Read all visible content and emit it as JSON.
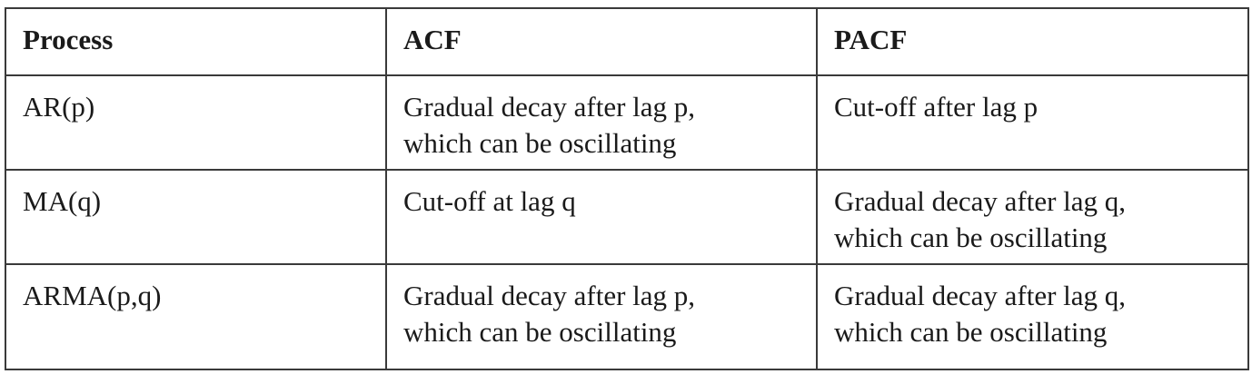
{
  "table": {
    "headers": [
      "Process",
      "ACF",
      "PACF"
    ],
    "rows": [
      {
        "process": "AR(p)",
        "acf": [
          "Gradual decay after lag p,",
          "which can be oscillating"
        ],
        "pacf": [
          "Cut-off after lag p"
        ]
      },
      {
        "process": "MA(q)",
        "acf": [
          "Cut-off at lag q"
        ],
        "pacf": [
          "Gradual decay after lag q,",
          "which can be oscillating"
        ]
      },
      {
        "process": "ARMA(p,q)",
        "acf": [
          "Gradual decay after lag p,",
          "which can be oscillating"
        ],
        "pacf": [
          "Gradual decay after lag q,",
          "which can be oscillating"
        ]
      }
    ]
  },
  "colors": {
    "border": "#3a3a3a",
    "text": "#1a1a1a",
    "background": "#ffffff"
  }
}
